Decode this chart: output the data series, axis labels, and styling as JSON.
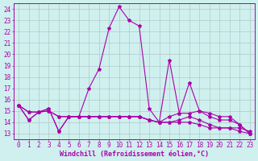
{
  "title": "",
  "xlabel": "Windchill (Refroidissement éolien,°C)",
  "background_color": "#cff0ee",
  "grid_color": "#b0c8c8",
  "line_color": "#aa00aa",
  "xlim": [
    -0.5,
    23.5
  ],
  "ylim": [
    12.5,
    24.5
  ],
  "xtick_labels": [
    "0",
    "1",
    "2",
    "3",
    "4",
    "5",
    "6",
    "7",
    "8",
    "9",
    "10",
    "11",
    "12",
    "13",
    "14",
    "15",
    "16",
    "17",
    "18",
    "19",
    "20",
    "21",
    "22",
    "23"
  ],
  "ytick_labels": [
    "13",
    "14",
    "15",
    "16",
    "17",
    "18",
    "19",
    "20",
    "21",
    "22",
    "23",
    "24"
  ],
  "series": [
    [
      15.5,
      14.2,
      14.9,
      15.2,
      13.2,
      14.5,
      14.5,
      17.0,
      18.7,
      22.3,
      24.2,
      23.0,
      22.5,
      15.2,
      14.0,
      19.5,
      14.8,
      17.5,
      15.0,
      14.8,
      14.5,
      14.5,
      13.8,
      13.0
    ],
    [
      15.5,
      14.2,
      14.9,
      15.2,
      13.2,
      14.5,
      14.5,
      14.5,
      14.5,
      14.5,
      14.5,
      14.5,
      14.5,
      14.2,
      14.0,
      14.0,
      14.0,
      14.0,
      13.8,
      13.5,
      13.5,
      13.5,
      13.2,
      13.0
    ],
    [
      15.5,
      14.9,
      14.9,
      15.0,
      14.5,
      14.5,
      14.5,
      14.5,
      14.5,
      14.5,
      14.5,
      14.5,
      14.5,
      14.2,
      14.0,
      14.5,
      14.8,
      14.8,
      15.0,
      14.5,
      14.2,
      14.2,
      13.8,
      13.0
    ],
    [
      15.5,
      14.9,
      14.9,
      15.0,
      14.5,
      14.5,
      14.5,
      14.5,
      14.5,
      14.5,
      14.5,
      14.5,
      14.5,
      14.2,
      14.0,
      14.0,
      14.2,
      14.5,
      14.2,
      13.8,
      13.5,
      13.5,
      13.5,
      13.2
    ]
  ],
  "axis_fontsize": 6,
  "tick_fontsize": 5.5,
  "marker_size": 3,
  "line_width": 0.8
}
